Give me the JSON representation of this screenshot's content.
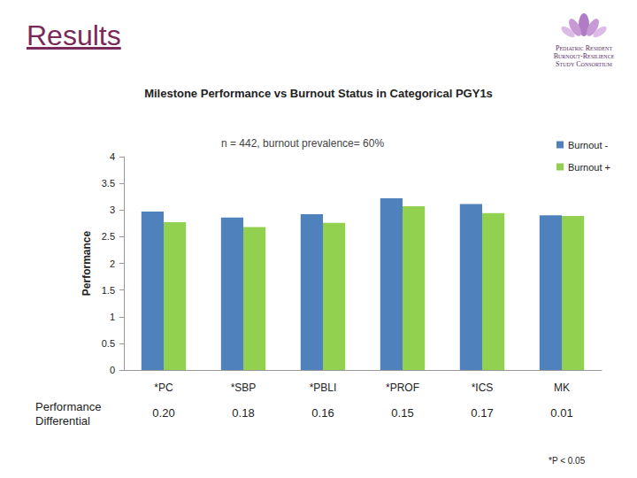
{
  "header": {
    "title": "Results",
    "logo": [
      "Pediatric Resident",
      "Burnout-Resilience",
      "Study Consortium"
    ]
  },
  "chart_data": {
    "type": "bar",
    "title": "Milestone Performance vs Burnout Status in Categorical PGY1s",
    "annotation": "n = 442, burnout prevalence= 60%",
    "ylabel": "Performance",
    "categories": [
      "*PC",
      "*SBP",
      "*PBLI",
      "*PROF",
      "*ICS",
      "MK"
    ],
    "series": [
      {
        "name": "Burnout -",
        "color": "#4f81bd",
        "values": [
          2.97,
          2.86,
          2.92,
          3.22,
          3.11,
          2.9
        ]
      },
      {
        "name": "Burnout +",
        "color": "#92d050",
        "values": [
          2.77,
          2.68,
          2.76,
          3.07,
          2.94,
          2.89
        ]
      }
    ],
    "ylim": [
      0,
      4
    ],
    "yticks": [
      0,
      0.5,
      1,
      1.5,
      2,
      2.5,
      3,
      3.5,
      4
    ],
    "grid": false,
    "legend": "top-right",
    "differential": {
      "label": "Performance Differential",
      "values": [
        0.2,
        0.18,
        0.16,
        0.15,
        0.17,
        0.01
      ],
      "value_labels": [
        "0.20",
        "0.18",
        "0.16",
        "0.15",
        "0.17",
        "0.01"
      ]
    },
    "footnote": "*P < 0.05"
  }
}
